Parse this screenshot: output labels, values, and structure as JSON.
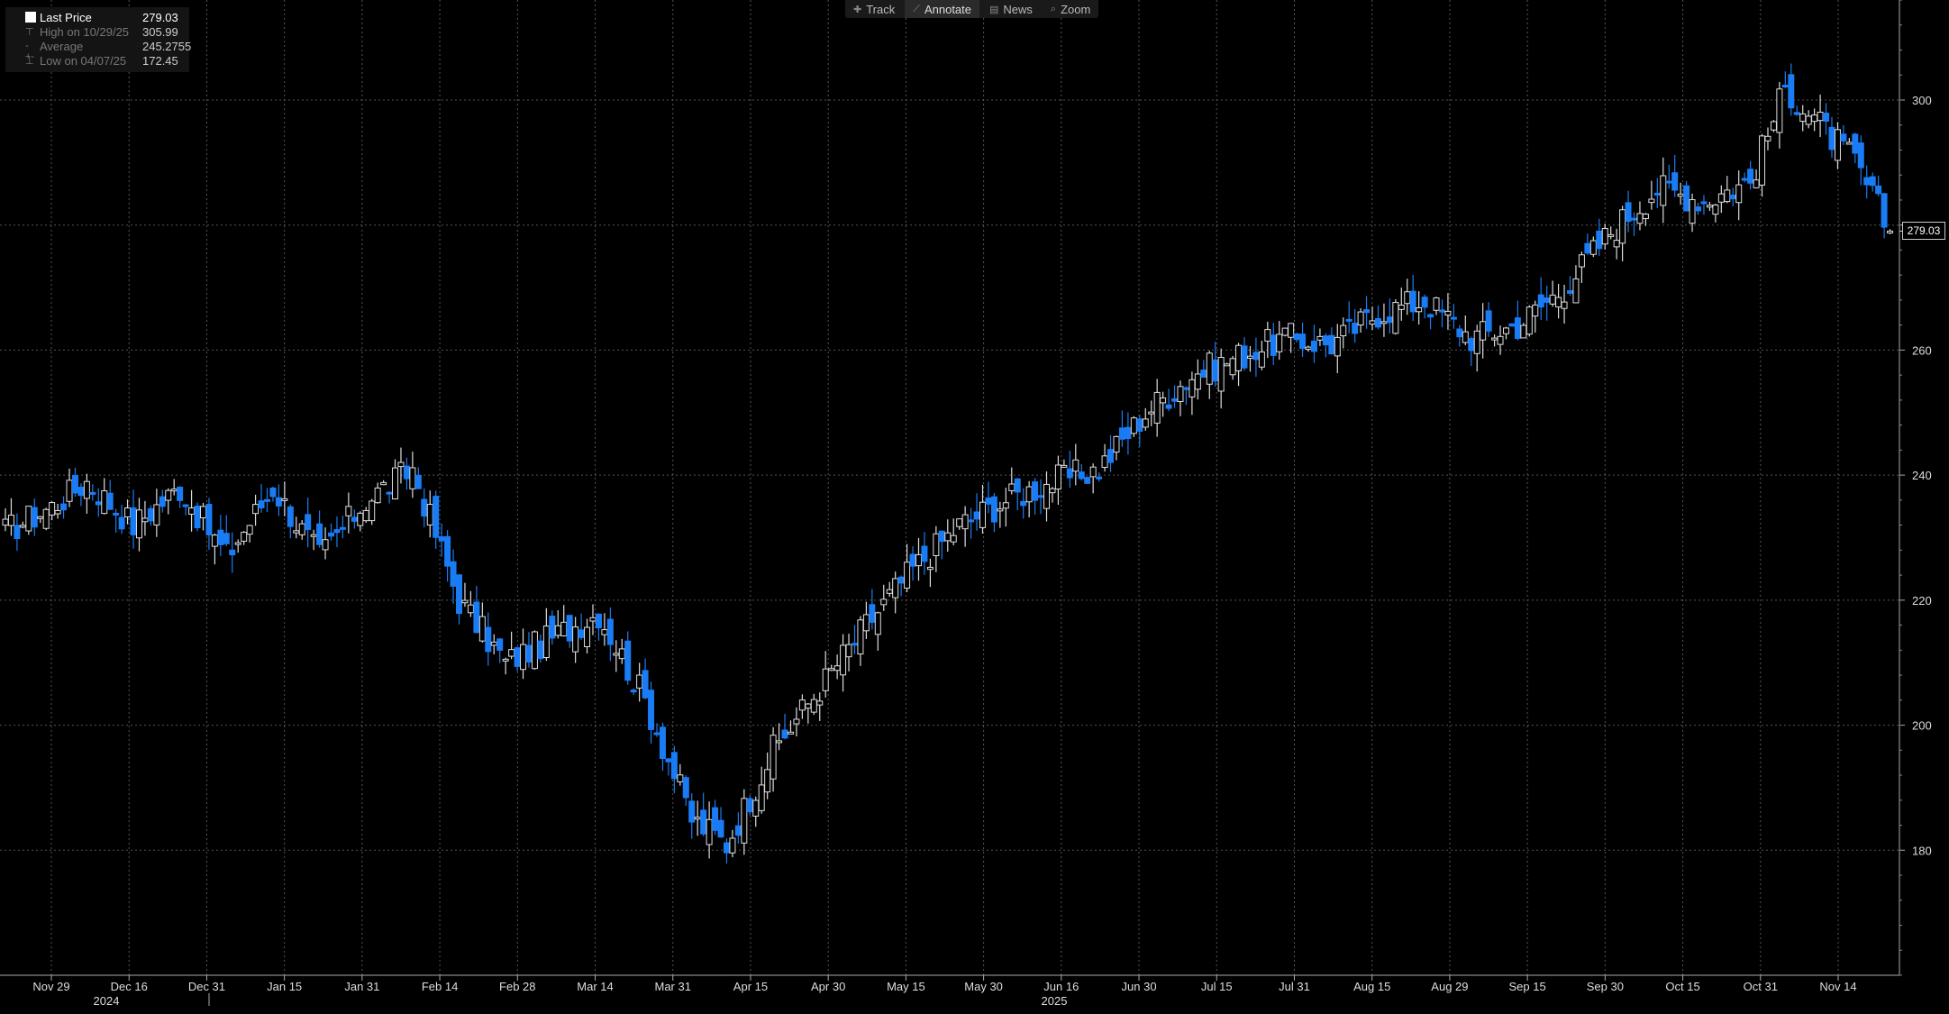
{
  "toolbar": {
    "track_label": "Track",
    "annotate_label": "Annotate",
    "news_label": "News",
    "zoom_label": "Zoom"
  },
  "legend": {
    "last_label": "Last Price",
    "last_value": "279.03",
    "high_label": "High on 10/29/25",
    "high_value": "305.99",
    "avg_label": "Average",
    "avg_value": "245.2755",
    "low_label": "Low on 04/07/25",
    "low_value": "172.45"
  },
  "colors": {
    "up": "#ffffff",
    "down": "#1a7cf4",
    "grid": "#555555",
    "axis_text": "#dddddd",
    "background": "#000000"
  },
  "last_badge": "279.03",
  "chart_data": {
    "type": "candlestick",
    "title": "",
    "ylim": [
      160,
      316
    ],
    "yticks": [
      180,
      200,
      220,
      240,
      260,
      280,
      300
    ],
    "ytick_labels": [
      "180",
      "200",
      "220",
      "240",
      "260",
      "",
      "300"
    ],
    "xticks": [
      "Nov 29",
      "Dec 16",
      "Dec 31",
      "Jan 15",
      "Jan 31",
      "Feb 14",
      "Feb 28",
      "Mar 14",
      "Mar 31",
      "Apr 15",
      "Apr 30",
      "May 15",
      "May 30",
      "Jun 16",
      "Jun 30",
      "Jul 15",
      "Jul 31",
      "Aug 15",
      "Aug 29",
      "Sep 15",
      "Sep 30",
      "Oct 15",
      "Oct 31",
      "Nov 14"
    ],
    "year_labels": [
      "2024",
      "2025"
    ],
    "last_price": 279.03,
    "high": 305.99,
    "average": 245.2755,
    "low": 172.45,
    "close_anchors": [
      [
        0,
        231
      ],
      [
        8,
        235
      ],
      [
        14,
        239
      ],
      [
        22,
        232
      ],
      [
        30,
        238
      ],
      [
        38,
        227
      ],
      [
        46,
        238
      ],
      [
        54,
        227
      ],
      [
        62,
        236
      ],
      [
        70,
        241
      ],
      [
        78,
        220
      ],
      [
        86,
        210
      ],
      [
        94,
        214
      ],
      [
        102,
        218
      ],
      [
        110,
        204
      ],
      [
        118,
        185
      ],
      [
        124,
        181
      ],
      [
        132,
        196
      ],
      [
        140,
        206
      ],
      [
        148,
        216
      ],
      [
        156,
        225
      ],
      [
        164,
        232
      ],
      [
        172,
        236
      ],
      [
        180,
        239
      ],
      [
        188,
        241
      ],
      [
        196,
        250
      ],
      [
        204,
        256
      ],
      [
        212,
        259
      ],
      [
        220,
        262
      ],
      [
        228,
        261
      ],
      [
        236,
        266
      ],
      [
        244,
        268
      ],
      [
        252,
        262
      ],
      [
        260,
        264
      ],
      [
        268,
        270
      ],
      [
        276,
        279
      ],
      [
        284,
        286
      ],
      [
        292,
        284
      ],
      [
        300,
        287
      ],
      [
        306,
        302
      ],
      [
        312,
        296
      ],
      [
        318,
        290
      ],
      [
        324,
        279.03
      ]
    ]
  }
}
